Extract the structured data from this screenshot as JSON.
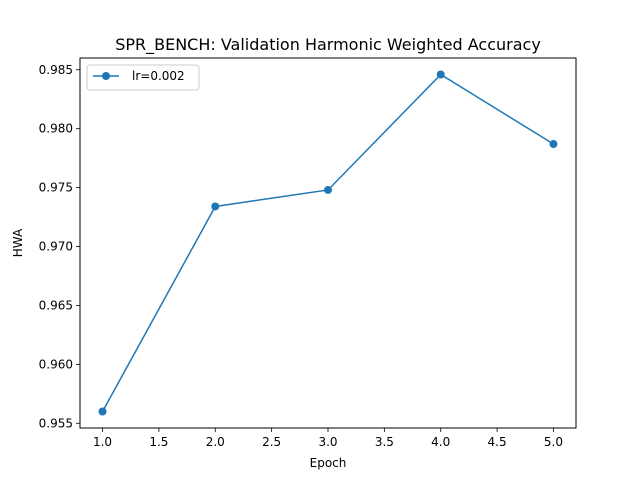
{
  "chart_data": {
    "type": "line",
    "title": "SPR_BENCH: Validation Harmonic Weighted Accuracy",
    "xlabel": "Epoch",
    "ylabel": "HWA",
    "xlim": [
      0.8,
      5.2
    ],
    "ylim": [
      0.9546,
      0.986
    ],
    "x_ticks": [
      1.0,
      1.5,
      2.0,
      2.5,
      3.0,
      3.5,
      4.0,
      4.5,
      5.0
    ],
    "x_tick_labels": [
      "1.0",
      "1.5",
      "2.0",
      "2.5",
      "3.0",
      "3.5",
      "4.0",
      "4.5",
      "5.0"
    ],
    "y_ticks": [
      0.955,
      0.96,
      0.965,
      0.97,
      0.975,
      0.98,
      0.985
    ],
    "y_tick_labels": [
      "0.955",
      "0.960",
      "0.965",
      "0.970",
      "0.975",
      "0.980",
      "0.985"
    ],
    "grid": false,
    "legend_position": "top-left",
    "series": [
      {
        "name": "lr=0.002",
        "color": "#1f77b4",
        "marker": "circle",
        "x": [
          1,
          2,
          3,
          4,
          5
        ],
        "y": [
          0.956,
          0.9734,
          0.9748,
          0.9846,
          0.9787
        ]
      }
    ]
  }
}
